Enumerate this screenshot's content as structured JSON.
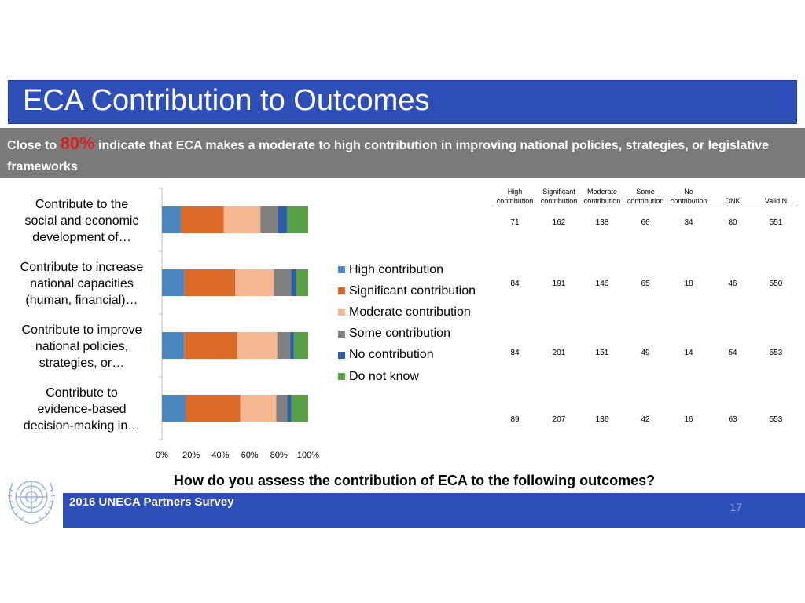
{
  "title": "ECA Contribution to Outcomes",
  "subtitle": {
    "prefix": "Close to ",
    "highlight": "80%",
    "suffix": " indicate that ECA makes a moderate to high contribution in improving national policies, strategies, or legislative frameworks"
  },
  "question": "How do you assess the contribution of ECA to the following outcomes?",
  "footer": {
    "survey": "2016 UNECA Partners Survey",
    "page": "17"
  },
  "colors": {
    "title_bar": "#2f4fb8",
    "subtitle_bar": "#7b7979",
    "highlight": "#d91f1f"
  },
  "logo": "un-emblem-icon",
  "chart_data": {
    "type": "bar",
    "orientation": "horizontal",
    "stacked": "percent",
    "categories": [
      [
        "Contribute to the",
        "social and economic",
        "development of…"
      ],
      [
        "Contribute to increase",
        "national capacities",
        "(human, financial)…"
      ],
      [
        "Contribute to improve",
        "national policies,",
        "strategies, or…"
      ],
      [
        "Contribute to",
        "evidence-based",
        "decision-making in…"
      ]
    ],
    "series": [
      {
        "name": "High contribution",
        "color": "#4a86c0",
        "values": [
          71,
          84,
          84,
          89
        ]
      },
      {
        "name": "Significant contribution",
        "color": "#db6a29",
        "values": [
          162,
          191,
          201,
          207
        ]
      },
      {
        "name": "Moderate contribution",
        "color": "#f5b792",
        "values": [
          138,
          146,
          151,
          136
        ]
      },
      {
        "name": "Some contribution",
        "color": "#808080",
        "values": [
          66,
          65,
          49,
          42
        ]
      },
      {
        "name": "No contribution",
        "color": "#2c5ea9",
        "values": [
          34,
          18,
          14,
          16
        ]
      },
      {
        "name": "Do not know",
        "color": "#5aa047",
        "values": [
          80,
          46,
          54,
          63
        ]
      }
    ],
    "xlim": [
      0,
      100
    ],
    "x_ticks": [
      "0%",
      "20%",
      "40%",
      "60%",
      "80%",
      "100%"
    ],
    "legend": "right",
    "grid": false,
    "table": {
      "headers": [
        [
          "High",
          "contribution"
        ],
        [
          "Significant",
          "contribution"
        ],
        [
          "Moderate",
          "contribution"
        ],
        [
          "Some",
          "contribution"
        ],
        [
          "No",
          "contribution"
        ],
        [
          "DNK"
        ],
        [
          "Valid N"
        ]
      ],
      "rows": [
        [
          "71",
          "162",
          "138",
          "66",
          "34",
          "80",
          "551"
        ],
        [
          "84",
          "191",
          "146",
          "65",
          "18",
          "46",
          "550"
        ],
        [
          "84",
          "201",
          "151",
          "49",
          "14",
          "54",
          "553"
        ],
        [
          "89",
          "207",
          "136",
          "42",
          "16",
          "63",
          "553"
        ]
      ]
    }
  }
}
